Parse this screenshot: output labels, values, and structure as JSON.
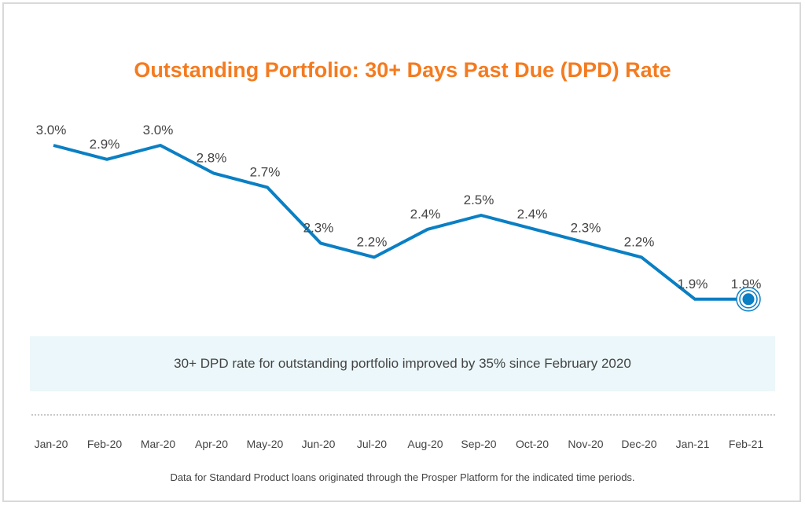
{
  "chart_data": {
    "type": "line",
    "title": "Outstanding Portfolio: 30+ Days Past Due (DPD) Rate",
    "categories": [
      "Jan-20",
      "Feb-20",
      "Mar-20",
      "Apr-20",
      "May-20",
      "Jun-20",
      "Jul-20",
      "Aug-20",
      "Sep-20",
      "Oct-20",
      "Nov-20",
      "Dec-20",
      "Jan-21",
      "Feb-21"
    ],
    "values": [
      3.0,
      2.9,
      3.0,
      2.8,
      2.7,
      2.3,
      2.2,
      2.4,
      2.5,
      2.4,
      2.3,
      2.2,
      1.9,
      1.9
    ],
    "data_labels": [
      "3.0%",
      "2.9%",
      "3.0%",
      "2.8%",
      "2.7%",
      "2.3%",
      "2.2%",
      "2.4%",
      "2.5%",
      "2.4%",
      "2.3%",
      "2.2%",
      "1.9%",
      "1.9%"
    ],
    "unit": "%",
    "grid": false,
    "highlighted_point": "Feb-21",
    "colors": {
      "line": "#0a7fc4",
      "title": "#f47b20",
      "callout_bg": "#ebf7fa"
    }
  },
  "callout": "30+ DPD rate for outstanding portfolio improved by 35% since February 2020",
  "footnote": "Data for Standard Product loans originated through the Prosper Platform for the indicated time periods."
}
